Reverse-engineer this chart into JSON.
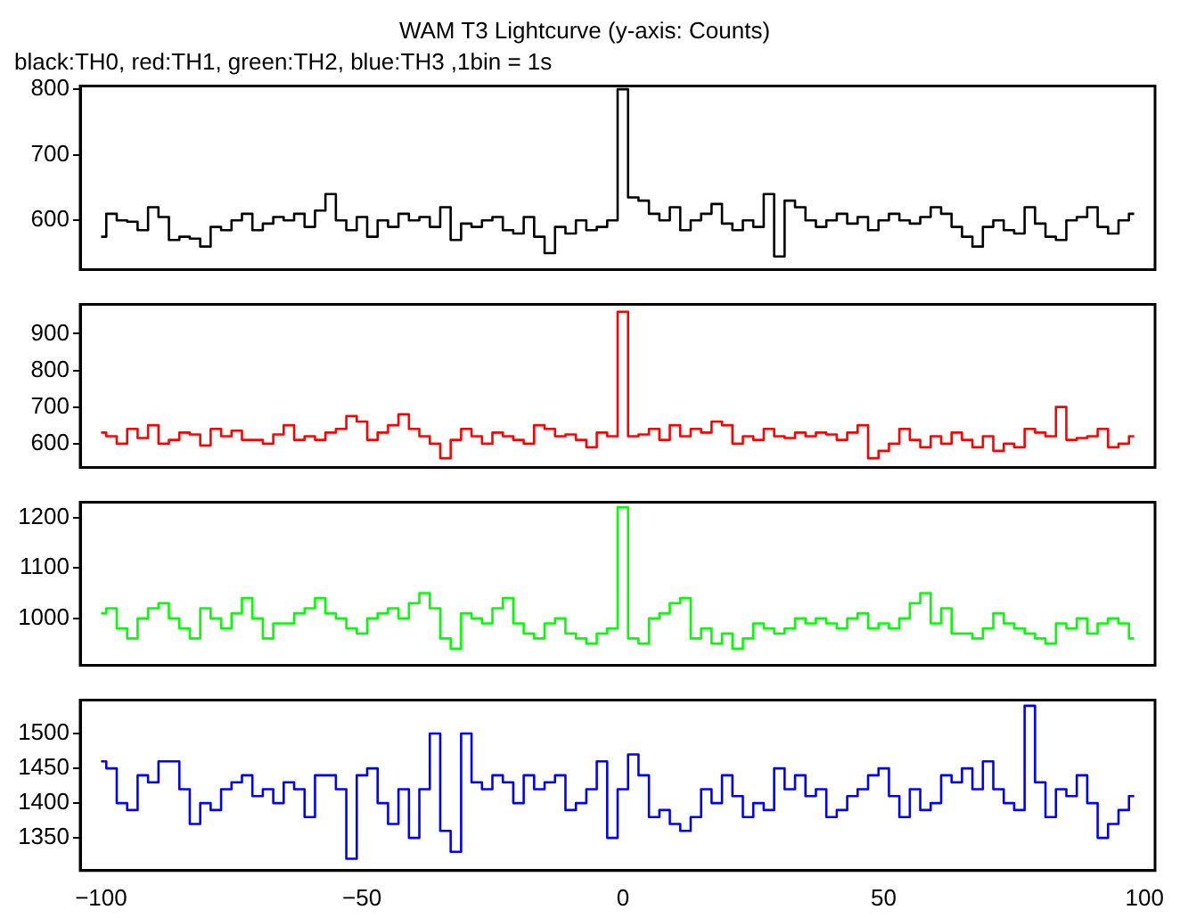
{
  "chart_data": [
    {
      "type": "step",
      "title": "WAM T3 Lightcurve (y-axis: Counts)",
      "subtitle": "black:TH0, red:TH1, green:TH2, blue:TH3 ,1bin = 1s",
      "color": "#000000",
      "tick_labels": "y",
      "xlim": [
        -104,
        102
      ],
      "xticks": [
        -100,
        -50,
        0,
        50,
        100
      ],
      "ylim": [
        525,
        805
      ],
      "yticks": [
        600,
        700,
        800
      ],
      "x": [
        -100,
        -98,
        -96,
        -94,
        -92,
        -90,
        -88,
        -86,
        -84,
        -82,
        -80,
        -78,
        -76,
        -74,
        -72,
        -70,
        -68,
        -66,
        -64,
        -62,
        -60,
        -58,
        -56,
        -54,
        -52,
        -50,
        -48,
        -46,
        -44,
        -42,
        -40,
        -38,
        -36,
        -34,
        -32,
        -30,
        -28,
        -26,
        -24,
        -22,
        -20,
        -18,
        -16,
        -14,
        -12,
        -10,
        -8,
        -6,
        -4,
        -2,
        0,
        2,
        4,
        6,
        8,
        10,
        12,
        14,
        16,
        18,
        20,
        22,
        24,
        26,
        28,
        30,
        32,
        34,
        36,
        38,
        40,
        42,
        44,
        46,
        48,
        50,
        52,
        54,
        56,
        58,
        60,
        62,
        64,
        66,
        68,
        70,
        72,
        74,
        76,
        78,
        80,
        82,
        84,
        86,
        88,
        90,
        92,
        94,
        96,
        98
      ],
      "values": [
        575,
        610,
        600,
        598,
        585,
        620,
        605,
        570,
        575,
        572,
        560,
        590,
        585,
        600,
        610,
        585,
        595,
        605,
        600,
        610,
        590,
        615,
        640,
        600,
        585,
        605,
        575,
        600,
        590,
        610,
        600,
        605,
        590,
        620,
        570,
        595,
        590,
        600,
        605,
        585,
        580,
        605,
        575,
        550,
        590,
        580,
        600,
        585,
        590,
        600,
        800,
        635,
        630,
        610,
        600,
        620,
        585,
        600,
        610,
        625,
        595,
        585,
        600,
        590,
        640,
        545,
        630,
        620,
        600,
        590,
        600,
        610,
        595,
        605,
        585,
        600,
        610,
        600,
        595,
        605,
        620,
        610,
        590,
        575,
        560,
        590,
        600,
        585,
        580,
        620,
        595,
        575,
        570,
        600,
        605,
        620,
        590,
        580,
        600,
        610
      ]
    },
    {
      "type": "step",
      "color": "#ff0000",
      "tick_labels": "y",
      "xlim": [
        -104,
        102
      ],
      "xticks": [
        -100,
        -50,
        0,
        50,
        100
      ],
      "ylim": [
        535,
        980
      ],
      "yticks": [
        600,
        700,
        800,
        900
      ],
      "x": [
        -100,
        -98,
        -96,
        -94,
        -92,
        -90,
        -88,
        -86,
        -84,
        -82,
        -80,
        -78,
        -76,
        -74,
        -72,
        -70,
        -68,
        -66,
        -64,
        -62,
        -60,
        -58,
        -56,
        -54,
        -52,
        -50,
        -48,
        -46,
        -44,
        -42,
        -40,
        -38,
        -36,
        -34,
        -32,
        -30,
        -28,
        -26,
        -24,
        -22,
        -20,
        -18,
        -16,
        -14,
        -12,
        -10,
        -8,
        -6,
        -4,
        -2,
        0,
        2,
        4,
        6,
        8,
        10,
        12,
        14,
        16,
        18,
        20,
        22,
        24,
        26,
        28,
        30,
        32,
        34,
        36,
        38,
        40,
        42,
        44,
        46,
        48,
        50,
        52,
        54,
        56,
        58,
        60,
        62,
        64,
        66,
        68,
        70,
        72,
        74,
        76,
        78,
        80,
        82,
        84,
        86,
        88,
        90,
        92,
        94,
        96,
        98
      ],
      "values": [
        630,
        620,
        600,
        640,
        615,
        650,
        600,
        610,
        630,
        625,
        595,
        640,
        620,
        635,
        610,
        610,
        600,
        625,
        650,
        610,
        620,
        610,
        630,
        640,
        675,
        660,
        610,
        630,
        650,
        680,
        640,
        620,
        600,
        560,
        610,
        640,
        620,
        600,
        630,
        620,
        610,
        600,
        650,
        640,
        620,
        625,
        610,
        590,
        630,
        620,
        960,
        620,
        625,
        640,
        610,
        650,
        620,
        640,
        630,
        660,
        650,
        600,
        620,
        610,
        640,
        620,
        615,
        630,
        620,
        630,
        625,
        610,
        630,
        650,
        560,
        580,
        600,
        640,
        610,
        590,
        620,
        600,
        630,
        610,
        590,
        620,
        580,
        600,
        590,
        640,
        630,
        620,
        700,
        610,
        615,
        620,
        640,
        590,
        600,
        620
      ]
    },
    {
      "type": "step",
      "color": "#00ff00",
      "tick_labels": "y",
      "xlim": [
        -104,
        102
      ],
      "xticks": [
        -100,
        -50,
        0,
        50,
        100
      ],
      "ylim": [
        907,
        1230
      ],
      "yticks": [
        1000,
        1100,
        1200
      ],
      "x": [
        -100,
        -98,
        -96,
        -94,
        -92,
        -90,
        -88,
        -86,
        -84,
        -82,
        -80,
        -78,
        -76,
        -74,
        -72,
        -70,
        -68,
        -66,
        -64,
        -62,
        -60,
        -58,
        -56,
        -54,
        -52,
        -50,
        -48,
        -46,
        -44,
        -42,
        -40,
        -38,
        -36,
        -34,
        -32,
        -30,
        -28,
        -26,
        -24,
        -22,
        -20,
        -18,
        -16,
        -14,
        -12,
        -10,
        -8,
        -6,
        -4,
        -2,
        0,
        2,
        4,
        6,
        8,
        10,
        12,
        14,
        16,
        18,
        20,
        22,
        24,
        26,
        28,
        30,
        32,
        34,
        36,
        38,
        40,
        42,
        44,
        46,
        48,
        50,
        52,
        54,
        56,
        58,
        60,
        62,
        64,
        66,
        68,
        70,
        72,
        74,
        76,
        78,
        80,
        82,
        84,
        86,
        88,
        90,
        92,
        94,
        96,
        98
      ],
      "values": [
        1010,
        1020,
        980,
        960,
        1000,
        1020,
        1030,
        1000,
        980,
        960,
        1020,
        1000,
        980,
        1010,
        1040,
        1000,
        960,
        990,
        990,
        1010,
        1020,
        1040,
        1010,
        1000,
        980,
        970,
        1000,
        1010,
        1020,
        1000,
        1030,
        1050,
        1020,
        960,
        940,
        1010,
        1000,
        990,
        1020,
        1040,
        990,
        970,
        960,
        990,
        1000,
        970,
        960,
        950,
        970,
        980,
        1220,
        960,
        950,
        1000,
        1010,
        1030,
        1040,
        960,
        980,
        950,
        970,
        940,
        960,
        990,
        980,
        970,
        980,
        1000,
        990,
        1000,
        990,
        980,
        1000,
        1010,
        980,
        990,
        980,
        1000,
        1030,
        1050,
        990,
        1020,
        970,
        970,
        960,
        980,
        1010,
        990,
        980,
        970,
        960,
        950,
        990,
        980,
        1000,
        970,
        990,
        1000,
        990,
        960
      ]
    },
    {
      "type": "step",
      "color": "#0000ff",
      "xlim": [
        -104,
        102
      ],
      "xticks": [
        -100,
        -50,
        0,
        50,
        100
      ],
      "ylim": [
        1303,
        1548
      ],
      "yticks": [
        1350,
        1400,
        1450,
        1500
      ],
      "x": [
        -100,
        -98,
        -96,
        -94,
        -92,
        -90,
        -88,
        -86,
        -84,
        -82,
        -80,
        -78,
        -76,
        -74,
        -72,
        -70,
        -68,
        -66,
        -64,
        -62,
        -60,
        -58,
        -56,
        -54,
        -52,
        -50,
        -48,
        -46,
        -44,
        -42,
        -40,
        -38,
        -36,
        -34,
        -32,
        -30,
        -28,
        -26,
        -24,
        -22,
        -20,
        -18,
        -16,
        -14,
        -12,
        -10,
        -8,
        -6,
        -4,
        -2,
        0,
        2,
        4,
        6,
        8,
        10,
        12,
        14,
        16,
        18,
        20,
        22,
        24,
        26,
        28,
        30,
        32,
        34,
        36,
        38,
        40,
        42,
        44,
        46,
        48,
        50,
        52,
        54,
        56,
        58,
        60,
        62,
        64,
        66,
        68,
        70,
        72,
        74,
        76,
        78,
        80,
        82,
        84,
        86,
        88,
        90,
        92,
        94,
        96,
        98
      ],
      "values": [
        1460,
        1450,
        1400,
        1390,
        1440,
        1430,
        1460,
        1460,
        1420,
        1370,
        1400,
        1390,
        1420,
        1430,
        1440,
        1410,
        1420,
        1400,
        1430,
        1420,
        1380,
        1440,
        1440,
        1420,
        1320,
        1440,
        1450,
        1400,
        1370,
        1420,
        1350,
        1420,
        1500,
        1360,
        1330,
        1500,
        1430,
        1420,
        1440,
        1430,
        1400,
        1440,
        1420,
        1430,
        1440,
        1390,
        1400,
        1420,
        1460,
        1350,
        1420,
        1470,
        1440,
        1380,
        1390,
        1370,
        1360,
        1380,
        1420,
        1400,
        1440,
        1410,
        1380,
        1400,
        1390,
        1450,
        1420,
        1440,
        1410,
        1420,
        1380,
        1390,
        1410,
        1420,
        1440,
        1450,
        1410,
        1380,
        1420,
        1390,
        1400,
        1440,
        1430,
        1450,
        1420,
        1460,
        1420,
        1400,
        1390,
        1540,
        1430,
        1380,
        1420,
        1410,
        1440,
        1400,
        1350,
        1370,
        1390,
        1410
      ]
    }
  ]
}
